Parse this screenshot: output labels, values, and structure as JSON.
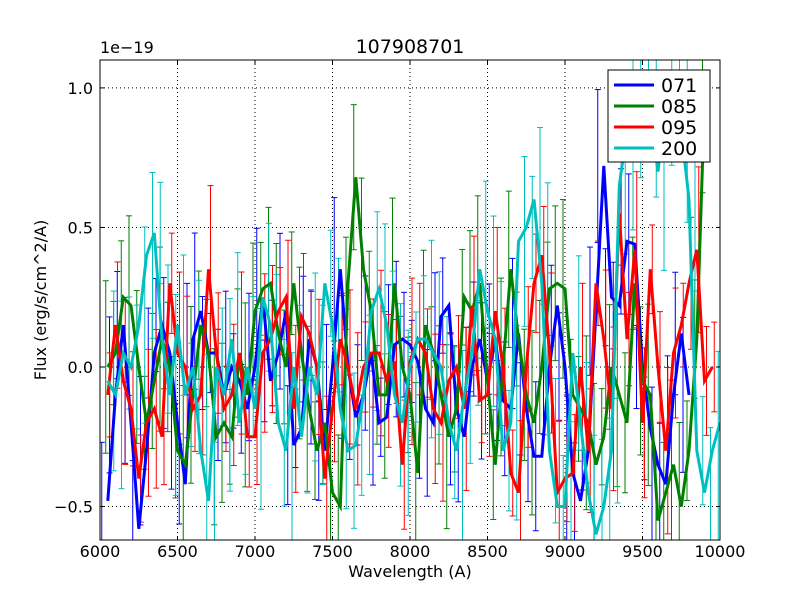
{
  "chart_data": {
    "type": "line",
    "title": "107908701",
    "xlabel": "Wavelength (A)",
    "ylabel": "Flux (erg/s/cm^2/A)",
    "y_multiplier": "1e−19",
    "xlim": [
      6000,
      10000
    ],
    "ylim": [
      -0.62,
      1.1
    ],
    "xticks": [
      6000,
      6500,
      7000,
      7500,
      8000,
      8500,
      9000,
      9500,
      10000
    ],
    "xtick_labels": [
      "6000",
      "6500",
      "7000",
      "7500",
      "8000",
      "8500",
      "9000",
      "9500",
      "10000"
    ],
    "yticks": [
      -0.5,
      0.0,
      0.5,
      1.0
    ],
    "ytick_labels": [
      "−0.5",
      "0.0",
      "0.5",
      "1.0"
    ],
    "grid": true,
    "legend_position": "top-right",
    "series": [
      {
        "name": "071",
        "color": "#0000ff",
        "x": [
          6050,
          6100,
          6150,
          6200,
          6250,
          6300,
          6350,
          6400,
          6450,
          6500,
          6550,
          6600,
          6650,
          6700,
          6750,
          6800,
          6850,
          6900,
          6950,
          7000,
          7050,
          7100,
          7150,
          7200,
          7250,
          7300,
          7350,
          7400,
          7450,
          7500,
          7550,
          7600,
          7650,
          7700,
          7750,
          7800,
          7850,
          7900,
          7950,
          8000,
          8050,
          8100,
          8150,
          8200,
          8250,
          8300,
          8350,
          8400,
          8450,
          8500,
          8550,
          8600,
          8650,
          8700,
          8750,
          8800,
          8850,
          8900,
          8950,
          9000,
          9050,
          9100,
          9150,
          9200,
          9250,
          9300,
          9350,
          9400,
          9450,
          9500,
          9550,
          9600,
          9650,
          9700,
          9750,
          9800
        ],
        "values": [
          -0.48,
          -0.1,
          0.15,
          -0.2,
          -0.58,
          -0.3,
          0.05,
          0.15,
          0.05,
          -0.2,
          -0.42,
          0.1,
          0.2,
          0.05,
          0.05,
          -0.1,
          0.0,
          -0.05,
          -0.15,
          0.0,
          0.25,
          -0.05,
          0.05,
          0.2,
          -0.28,
          -0.22,
          0.1,
          0.0,
          -0.3,
          0.0,
          0.35,
          0.0,
          -0.18,
          -0.1,
          0.05,
          -0.2,
          -0.18,
          0.08,
          0.1,
          0.08,
          0.02,
          -0.15,
          -0.2,
          0.18,
          0.22,
          -0.15,
          -0.25,
          0.0,
          0.1,
          -0.05,
          0.1,
          -0.12,
          -0.15,
          0.12,
          -0.15,
          -0.32,
          -0.32,
          0.0,
          0.22,
          0.0,
          -0.38,
          -0.48,
          -0.3,
          0.2,
          0.72,
          0.25,
          0.22,
          0.45,
          0.44,
          0.0,
          -0.22,
          -0.35,
          -0.42,
          -0.1,
          0.12,
          -0.1
        ]
      },
      {
        "name": "085",
        "color": "#008000",
        "x": [
          6050,
          6100,
          6150,
          6200,
          6250,
          6300,
          6350,
          6400,
          6450,
          6500,
          6550,
          6600,
          6650,
          6700,
          6750,
          6800,
          6850,
          6900,
          6950,
          7000,
          7050,
          7100,
          7150,
          7200,
          7250,
          7300,
          7350,
          7400,
          7450,
          7500,
          7550,
          7600,
          7650,
          7700,
          7750,
          7800,
          7850,
          7900,
          7950,
          8000,
          8050,
          8100,
          8150,
          8200,
          8250,
          8300,
          8350,
          8400,
          8450,
          8500,
          8550,
          8600,
          8650,
          8700,
          8750,
          8800,
          8850,
          8900,
          8950,
          9000,
          9050,
          9100,
          9150,
          9200,
          9250,
          9300,
          9350,
          9400,
          9450,
          9500,
          9550,
          9600,
          9650,
          9700,
          9750,
          9800,
          9850,
          9900
        ],
        "values": [
          0.0,
          0.05,
          0.25,
          0.22,
          0.0,
          -0.2,
          -0.05,
          0.1,
          0.0,
          -0.3,
          -0.35,
          -0.1,
          0.15,
          0.05,
          -0.25,
          -0.2,
          -0.25,
          0.05,
          -0.1,
          0.2,
          0.28,
          0.3,
          0.12,
          0.0,
          0.3,
          0.05,
          -0.15,
          -0.3,
          -0.2,
          -0.45,
          -0.5,
          0.3,
          0.68,
          0.35,
          0.2,
          -0.1,
          -0.1,
          0.3,
          0.0,
          -0.1,
          -0.38,
          0.15,
          0.05,
          -0.1,
          -0.25,
          -0.15,
          0.25,
          0.2,
          0.3,
          -0.05,
          -0.35,
          0.0,
          0.35,
          0.1,
          -0.1,
          -0.2,
          0.0,
          0.28,
          0.3,
          0.28,
          -0.1,
          -0.15,
          -0.2,
          -0.35,
          -0.25,
          0.0,
          -0.1,
          -0.2,
          0.3,
          -0.05,
          -0.1,
          -0.55,
          -0.45,
          -0.35,
          -0.5,
          -0.3,
          0.1,
          0.95
        ]
      },
      {
        "name": "095",
        "color": "#ff0000",
        "x": [
          6050,
          6100,
          6150,
          6200,
          6250,
          6300,
          6350,
          6400,
          6450,
          6500,
          6550,
          6600,
          6650,
          6700,
          6750,
          6800,
          6850,
          6900,
          6950,
          7000,
          7050,
          7100,
          7150,
          7200,
          7250,
          7300,
          7350,
          7400,
          7450,
          7500,
          7550,
          7600,
          7650,
          7700,
          7750,
          7800,
          7850,
          7900,
          7950,
          8000,
          8050,
          8100,
          8150,
          8200,
          8250,
          8300,
          8350,
          8400,
          8450,
          8500,
          8550,
          8600,
          8650,
          8700,
          8750,
          8800,
          8850,
          8900,
          8950,
          9000,
          9050,
          9100,
          9150,
          9200,
          9250,
          9300,
          9350,
          9400,
          9450,
          9500,
          9550,
          9600,
          9650,
          9700,
          9750,
          9800,
          9850,
          9900,
          9950
        ],
        "values": [
          -0.1,
          0.15,
          -0.05,
          -0.15,
          -0.4,
          -0.2,
          -0.15,
          -0.25,
          0.3,
          0.05,
          0.0,
          -0.15,
          -0.1,
          0.35,
          0.05,
          -0.15,
          -0.1,
          0.05,
          -0.25,
          -0.25,
          0.05,
          0.1,
          0.2,
          0.25,
          -0.15,
          0.18,
          0.12,
          0.0,
          -0.4,
          -0.15,
          0.1,
          0.0,
          -0.15,
          0.0,
          0.05,
          0.05,
          -0.05,
          0.02,
          -0.35,
          0.02,
          0.1,
          0.05,
          -0.15,
          -0.2,
          -0.05,
          0.0,
          -0.15,
          0.22,
          -0.12,
          -0.1,
          0.2,
          0.0,
          -0.38,
          -0.45,
          0.0,
          0.3,
          0.4,
          0.05,
          -0.45,
          -0.4,
          -0.38,
          0.0,
          -0.3,
          0.3,
          0.1,
          -0.15,
          0.55,
          0.1,
          0.42,
          -0.2,
          0.35,
          0.0,
          -0.3,
          0.05,
          0.15,
          0.3,
          0.42,
          -0.05,
          0.0
        ]
      },
      {
        "name": "200",
        "color": "#00bfbf",
        "x": [
          6050,
          6100,
          6150,
          6200,
          6250,
          6300,
          6350,
          6400,
          6450,
          6500,
          6550,
          6600,
          6650,
          6700,
          6750,
          6800,
          6850,
          6900,
          6950,
          7000,
          7050,
          7100,
          7150,
          7200,
          7250,
          7300,
          7350,
          7400,
          7450,
          7500,
          7550,
          7600,
          7650,
          7700,
          7750,
          7800,
          7850,
          7900,
          7950,
          8000,
          8050,
          8100,
          8150,
          8200,
          8250,
          8300,
          8350,
          8400,
          8450,
          8500,
          8550,
          8600,
          8650,
          8700,
          8750,
          8800,
          8850,
          8900,
          8950,
          9000,
          9050,
          9100,
          9150,
          9200,
          9250,
          9300,
          9350,
          9400,
          9450,
          9500,
          9550,
          9600,
          9650,
          9700,
          9750,
          9800,
          9850,
          9900,
          9950,
          10000
        ],
        "values": [
          -0.05,
          -0.1,
          0.05,
          0.0,
          0.15,
          0.4,
          0.48,
          0.1,
          -0.1,
          0.15,
          -0.1,
          0.0,
          -0.3,
          -0.48,
          0.0,
          -0.1,
          0.1,
          -0.2,
          0.0,
          -0.15,
          0.25,
          0.15,
          -0.2,
          -0.3,
          0.0,
          -0.25,
          0.0,
          -0.1,
          0.3,
          0.15,
          -0.15,
          -0.3,
          -0.28,
          -0.1,
          0.2,
          0.28,
          0.15,
          -0.1,
          -0.2,
          0.0,
          0.1,
          0.1,
          0.05,
          0.0,
          -0.2,
          -0.3,
          -0.1,
          0.05,
          0.35,
          0.2,
          0.1,
          -0.3,
          -0.2,
          0.45,
          0.5,
          0.6,
          0.3,
          -0.3,
          -0.5,
          -0.5,
          0.05,
          -0.2,
          -0.45,
          -0.6,
          -0.5,
          -0.3,
          0.65,
          0.85,
          0.95,
          1.05,
          0.9,
          0.7,
          0.95,
          1.05,
          0.85,
          0.6,
          -0.3,
          -0.45,
          -0.3,
          -0.2
        ]
      }
    ]
  }
}
